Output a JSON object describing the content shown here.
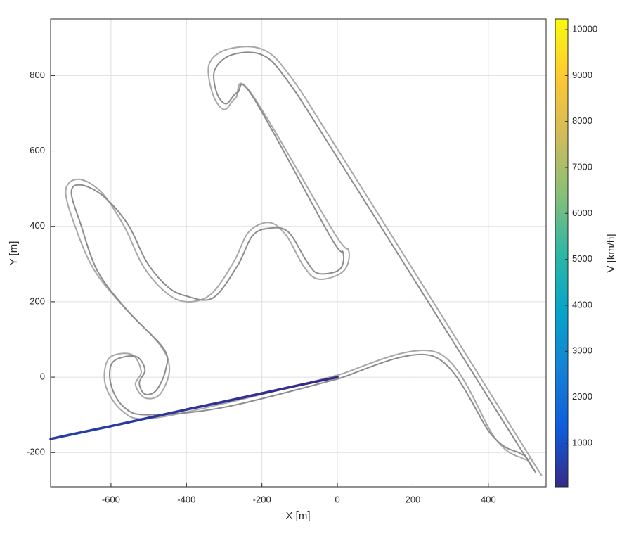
{
  "chart_data": {
    "type": "track",
    "xlabel": "X [m]",
    "ylabel": "Y [m]",
    "colorbar_label": "V [km/h]",
    "xlim": [
      -760,
      553
    ],
    "ylim": [
      -291,
      950
    ],
    "xticks": [
      -600,
      -400,
      -200,
      0,
      200,
      400
    ],
    "yticks": [
      -200,
      0,
      200,
      400,
      600,
      800
    ],
    "clim": [
      50,
      10230
    ],
    "cticks": [
      1000,
      2000,
      3000,
      4000,
      5000,
      6000,
      7000,
      8000,
      9000,
      10000
    ],
    "colormap": [
      "#352a87",
      "#0f5cdd",
      "#1481d6",
      "#06a4ca",
      "#2eb7a4",
      "#87bf77",
      "#d1bb59",
      "#fec832",
      "#f9fb0e"
    ],
    "grid": true,
    "series": [
      {
        "color": "#a8a8a8",
        "x": [
          0,
          265,
          420,
          490,
          510,
          500,
          0,
          -130,
          -200,
          -290,
          -340,
          -330,
          -300,
          -270,
          -230,
          -10,
          30,
          15,
          -50,
          -90,
          -135,
          -180,
          -235,
          -275,
          -335,
          -400,
          -455,
          -515,
          -565,
          -625,
          -685,
          -720,
          -695,
          -645,
          -565,
          -470,
          -445,
          -470,
          -510,
          -535,
          -520,
          -545,
          -605,
          -615,
          -570,
          -500,
          -300,
          0
        ],
        "y": [
          5,
          65,
          -165,
          -215,
          -215,
          -195,
          605,
          805,
          870,
          870,
          830,
          750,
          710,
          740,
          755,
          385,
          335,
          280,
          260,
          295,
          375,
          410,
          385,
          305,
          220,
          200,
          225,
          295,
          400,
          490,
          525,
          495,
          400,
          285,
          185,
          85,
          20,
          -45,
          -55,
          -20,
          15,
          60,
          50,
          -20,
          -90,
          -110,
          -70,
          5
        ]
      },
      {
        "color": "#8c8c8c",
        "x": [
          0,
          255,
          410,
          480,
          495,
          485,
          -5,
          -135,
          -200,
          -280,
          -325,
          -320,
          -295,
          -265,
          -225,
          -20,
          15,
          5,
          -50,
          -80,
          -130,
          -180,
          -225,
          -265,
          -330,
          -400,
          -450,
          -505,
          -555,
          -620,
          -680,
          -705,
          -680,
          -635,
          -555,
          -460,
          -455,
          -480,
          -510,
          -525,
          -510,
          -535,
          -595,
          -600,
          -565,
          -500,
          -300,
          0
        ],
        "y": [
          -5,
          55,
          -155,
          -200,
          -205,
          -190,
          590,
          790,
          855,
          855,
          815,
          755,
          725,
          755,
          745,
          375,
          330,
          285,
          275,
          305,
          385,
          395,
          375,
          295,
          210,
          215,
          240,
          305,
          405,
          480,
          510,
          490,
          405,
          280,
          175,
          75,
          20,
          -35,
          -45,
          -15,
          20,
          55,
          40,
          -20,
          -80,
          -100,
          -80,
          -5
        ]
      }
    ],
    "velocity": {
      "x": [
        0,
        -100,
        -200,
        -300,
        -400,
        -500,
        -600,
        -700,
        -760
      ],
      "y": [
        0,
        -21,
        -43,
        -65,
        -86,
        -108,
        -130,
        -151,
        -164
      ],
      "v": [
        80,
        150,
        220,
        290,
        360,
        430,
        500,
        570,
        610
      ]
    }
  }
}
